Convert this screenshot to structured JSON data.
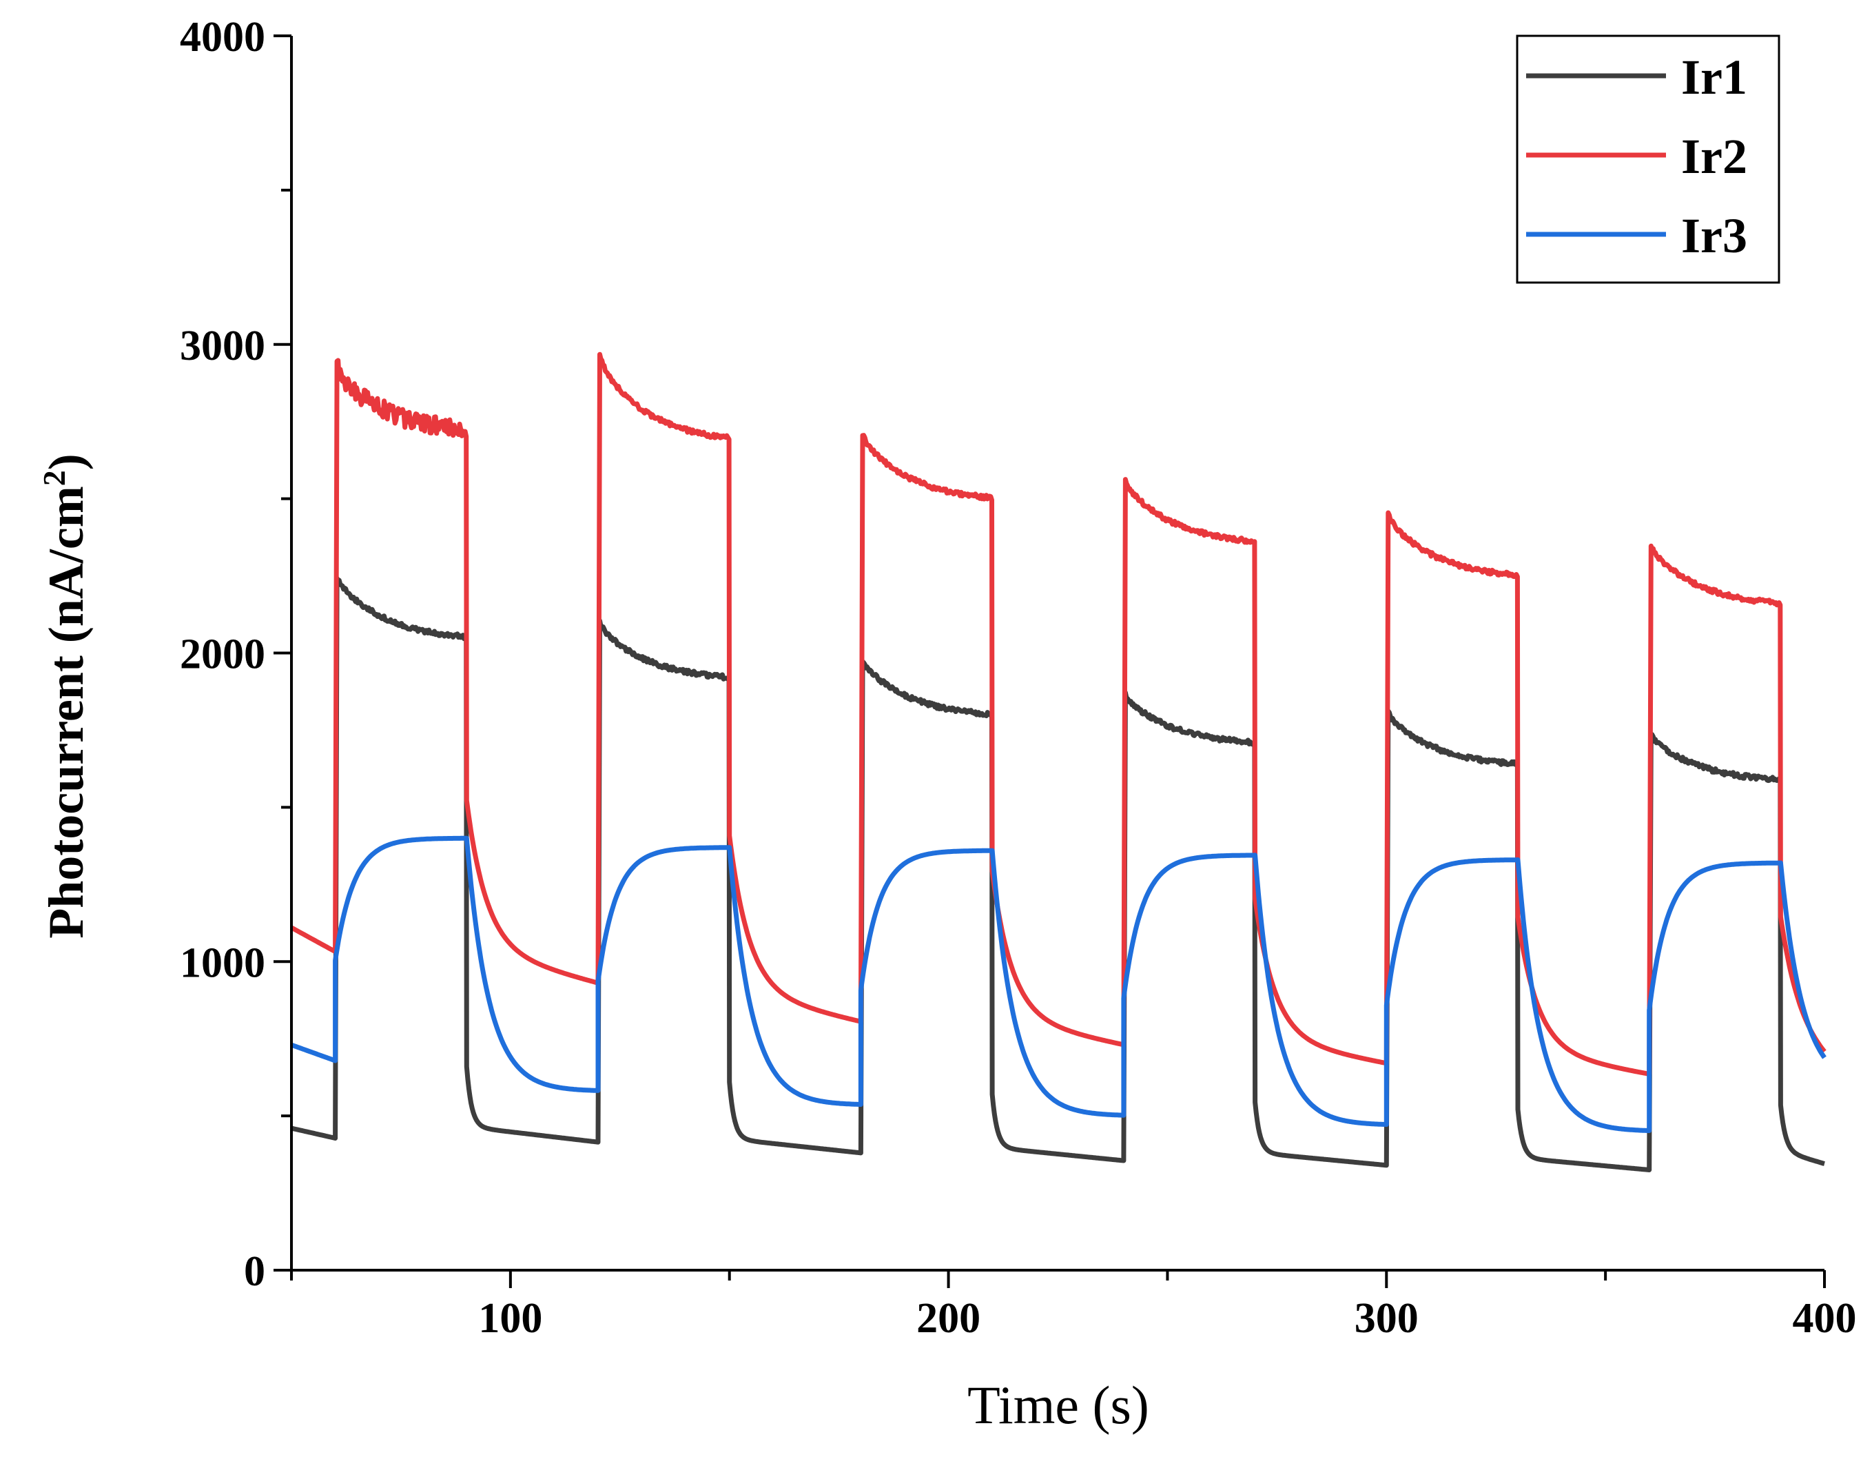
{
  "chart_data": {
    "type": "line",
    "title": "",
    "xlabel": "Time (s)",
    "ylabel": "Photocurrent (nA/cm",
    "ylabel_sup": "2",
    "ylabel_close": ")",
    "xlim": [
      50,
      400
    ],
    "ylim": [
      0,
      4000
    ],
    "x_ticks": [
      100,
      200,
      300,
      400
    ],
    "x_tick_labels": [
      "100",
      "200",
      "300",
      "400"
    ],
    "x_minor_ticks": [
      50,
      150,
      250,
      350
    ],
    "y_ticks": [
      0,
      1000,
      2000,
      3000,
      4000
    ],
    "y_tick_labels": [
      "0",
      "1000",
      "2000",
      "3000",
      "4000"
    ],
    "grid": false,
    "legend_position": "top-right",
    "light_cycles": {
      "on_times": [
        60,
        120,
        180,
        240,
        300,
        360
      ],
      "on_duration": 30
    },
    "series": [
      {
        "name": "Ir1",
        "color": "#3d3d3d",
        "start_value": 460,
        "cycles": [
          {
            "on": 60,
            "off": 90,
            "peak": 2240,
            "end": 2040,
            "dark_end": 415
          },
          {
            "on": 120,
            "off": 150,
            "peak": 2090,
            "end": 1910,
            "dark_end": 380
          },
          {
            "on": 180,
            "off": 210,
            "peak": 1970,
            "end": 1790,
            "dark_end": 355
          },
          {
            "on": 240,
            "off": 270,
            "peak": 1860,
            "end": 1700,
            "dark_end": 340
          },
          {
            "on": 300,
            "off": 330,
            "peak": 1800,
            "end": 1630,
            "dark_end": 325
          },
          {
            "on": 360,
            "off": 390,
            "peak": 1730,
            "end": 1580,
            "dark_end": 345
          }
        ],
        "style": "spike-decay"
      },
      {
        "name": "Ir2",
        "color": "#e8383d",
        "start_value": 1110,
        "cycles": [
          {
            "on": 60,
            "off": 90,
            "peak": 2920,
            "end": 2710,
            "dark_end": 930
          },
          {
            "on": 120,
            "off": 150,
            "peak": 2950,
            "end": 2680,
            "dark_end": 805
          },
          {
            "on": 180,
            "off": 210,
            "peak": 2700,
            "end": 2490,
            "dark_end": 730
          },
          {
            "on": 240,
            "off": 270,
            "peak": 2550,
            "end": 2350,
            "dark_end": 670
          },
          {
            "on": 300,
            "off": 330,
            "peak": 2440,
            "end": 2240,
            "dark_end": 635
          },
          {
            "on": 360,
            "off": 390,
            "peak": 2340,
            "end": 2150,
            "dark_end": 665
          }
        ],
        "style": "spike-decay"
      },
      {
        "name": "Ir3",
        "color": "#1f6fdc",
        "start_value": 730,
        "cycles": [
          {
            "on": 60,
            "off": 90,
            "peak": 1400,
            "end": 1400,
            "dark_end": 580
          },
          {
            "on": 120,
            "off": 150,
            "peak": 1370,
            "end": 1370,
            "dark_end": 535
          },
          {
            "on": 180,
            "off": 210,
            "peak": 1360,
            "end": 1360,
            "dark_end": 500
          },
          {
            "on": 240,
            "off": 270,
            "peak": 1345,
            "end": 1345,
            "dark_end": 470
          },
          {
            "on": 300,
            "off": 330,
            "peak": 1330,
            "end": 1330,
            "dark_end": 450
          },
          {
            "on": 360,
            "off": 390,
            "peak": 1320,
            "end": 1320,
            "dark_end": 590
          }
        ],
        "style": "slow-rise"
      }
    ]
  }
}
